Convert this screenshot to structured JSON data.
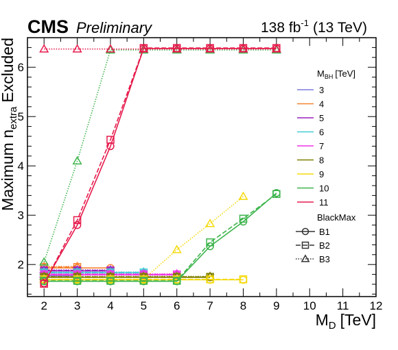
{
  "header": {
    "experiment": "CMS",
    "status": "Preliminary",
    "lumi": "138 fb",
    "lumi_exp": "-1",
    "energy": "(13 TeV)"
  },
  "legend": {
    "mass_title": "M",
    "mass_title_sub": "BH",
    "mass_title_unit": "[TeV]",
    "model_title": "BlackMax",
    "models": [
      "B1",
      "B2",
      "B3"
    ]
  },
  "chart_data": {
    "type": "line",
    "xlabel": "M",
    "xlabel_sub": "D",
    "xlabel_unit": "[TeV]",
    "ylabel": "Maximum n",
    "ylabel_sub": "extra",
    "ylabel_suffix": "Excluded",
    "xlim": [
      1.5,
      12
    ],
    "ylim": [
      1.35,
      6.6
    ],
    "xticks": [
      2,
      3,
      4,
      5,
      6,
      7,
      8,
      9,
      10,
      11,
      12
    ],
    "yticks": [
      2,
      3,
      4,
      5,
      6
    ],
    "legend_position": "right",
    "series": [
      {
        "name": "3",
        "color": "#7c7ce0",
        "points": {
          "B1": [
            [
              2,
              1.77
            ],
            [
              3,
              1.77
            ]
          ],
          "B2": [
            [
              2,
              1.79
            ],
            [
              3,
              1.79
            ]
          ],
          "B3": [
            [
              2,
              1.8
            ],
            [
              3,
              1.8
            ]
          ]
        }
      },
      {
        "name": "4",
        "color": "#f58231",
        "points": {
          "B1": [
            [
              2,
              1.93
            ],
            [
              3,
              1.93
            ],
            [
              4,
              1.93
            ]
          ],
          "B2": [
            [
              2,
              1.95
            ],
            [
              3,
              1.95
            ]
          ],
          "B3": [
            [
              2,
              1.96
            ],
            [
              3,
              1.96
            ]
          ]
        }
      },
      {
        "name": "5",
        "color": "#9a1fbf",
        "points": {
          "B1": [
            [
              2,
              1.87
            ],
            [
              3,
              1.87
            ],
            [
              4,
              1.87
            ]
          ],
          "B2": [
            [
              2,
              1.88
            ],
            [
              3,
              1.88
            ],
            [
              4,
              1.88
            ]
          ],
          "B3": [
            [
              2,
              1.89
            ],
            [
              3,
              1.89
            ],
            [
              4,
              1.89
            ]
          ]
        }
      },
      {
        "name": "6",
        "color": "#46c9d4",
        "points": {
          "B1": [
            [
              2,
              1.83
            ],
            [
              3,
              1.83
            ],
            [
              4,
              1.83
            ],
            [
              5,
              1.83
            ]
          ],
          "B2": [
            [
              2,
              1.84
            ],
            [
              3,
              1.84
            ],
            [
              4,
              1.84
            ],
            [
              5,
              1.84
            ]
          ],
          "B3": [
            [
              2,
              1.85
            ],
            [
              3,
              1.85
            ],
            [
              4,
              1.85
            ],
            [
              5,
              1.85
            ]
          ]
        }
      },
      {
        "name": "7",
        "color": "#f032e6",
        "points": {
          "B1": [
            [
              2,
              1.79
            ],
            [
              3,
              1.79
            ],
            [
              4,
              1.79
            ],
            [
              5,
              1.79
            ],
            [
              6,
              1.79
            ]
          ],
          "B2": [
            [
              2,
              1.8
            ],
            [
              3,
              1.8
            ],
            [
              4,
              1.8
            ],
            [
              5,
              1.8
            ],
            [
              6,
              1.8
            ]
          ],
          "B3": [
            [
              2,
              1.81
            ],
            [
              3,
              1.81
            ],
            [
              4,
              1.81
            ],
            [
              5,
              1.81
            ],
            [
              6,
              1.81
            ]
          ]
        }
      },
      {
        "name": "8",
        "color": "#7f7f00",
        "points": {
          "B1": [
            [
              2,
              1.74
            ],
            [
              3,
              1.74
            ],
            [
              4,
              1.74
            ],
            [
              5,
              1.74
            ],
            [
              6,
              1.74
            ],
            [
              7,
              1.74
            ]
          ],
          "B2": [
            [
              2,
              1.75
            ],
            [
              3,
              1.75
            ],
            [
              4,
              1.75
            ],
            [
              5,
              1.75
            ],
            [
              6,
              1.75
            ],
            [
              7,
              1.75
            ]
          ],
          "B3": [
            [
              2,
              1.76
            ],
            [
              3,
              1.76
            ],
            [
              4,
              1.76
            ],
            [
              5,
              1.76
            ],
            [
              6,
              1.76
            ],
            [
              7,
              1.76
            ]
          ]
        }
      },
      {
        "name": "9",
        "color": "#f5d90a",
        "points": {
          "B1": [
            [
              2,
              1.69
            ],
            [
              3,
              1.69
            ],
            [
              4,
              1.69
            ],
            [
              5,
              1.69
            ],
            [
              6,
              1.69
            ],
            [
              7,
              1.69
            ],
            [
              8,
              1.69
            ]
          ],
          "B2": [
            [
              2,
              1.7
            ],
            [
              3,
              1.7
            ],
            [
              4,
              1.7
            ],
            [
              5,
              1.7
            ],
            [
              6,
              1.7
            ],
            [
              7,
              1.7
            ],
            [
              8,
              1.7
            ]
          ],
          "B3": [
            [
              2,
              1.7
            ],
            [
              3,
              1.7
            ],
            [
              4,
              1.7
            ],
            [
              5,
              1.7
            ],
            [
              6,
              2.3
            ],
            [
              7,
              2.83
            ],
            [
              8,
              3.38
            ]
          ]
        }
      },
      {
        "name": "10",
        "color": "#3cb44b",
        "points": {
          "B1": [
            [
              2,
              1.66
            ],
            [
              3,
              1.66
            ],
            [
              4,
              1.66
            ],
            [
              5,
              1.66
            ],
            [
              6,
              1.66
            ],
            [
              7,
              2.37
            ],
            [
              8,
              2.87
            ],
            [
              9,
              3.45
            ]
          ],
          "B2": [
            [
              2,
              1.67
            ],
            [
              3,
              1.67
            ],
            [
              4,
              1.67
            ],
            [
              5,
              1.67
            ],
            [
              6,
              1.67
            ],
            [
              7,
              2.45
            ],
            [
              8,
              2.93
            ],
            [
              9,
              3.43
            ]
          ],
          "B3": [
            [
              2,
              2.05
            ],
            [
              3,
              4.1
            ],
            [
              4,
              6.35
            ],
            [
              5,
              6.35
            ],
            [
              6,
              6.35
            ],
            [
              7,
              6.35
            ],
            [
              8,
              6.35
            ],
            [
              9,
              6.35
            ]
          ]
        }
      },
      {
        "name": "11",
        "color": "#e6194b",
        "points": {
          "B1": [
            [
              2,
              1.62
            ],
            [
              3,
              2.8
            ],
            [
              4,
              4.4
            ],
            [
              5,
              6.38
            ],
            [
              6,
              6.38
            ],
            [
              7,
              6.38
            ],
            [
              8,
              6.38
            ],
            [
              9,
              6.38
            ]
          ],
          "B2": [
            [
              2,
              1.61
            ],
            [
              3,
              2.9
            ],
            [
              4,
              4.53
            ],
            [
              5,
              6.39
            ],
            [
              6,
              6.39
            ],
            [
              7,
              6.39
            ],
            [
              8,
              6.39
            ],
            [
              9,
              6.39
            ]
          ],
          "B3": [
            [
              2,
              6.37
            ],
            [
              3,
              6.37
            ],
            [
              4,
              6.37
            ],
            [
              5,
              6.37
            ],
            [
              6,
              6.37
            ],
            [
              7,
              6.37
            ],
            [
              8,
              6.37
            ],
            [
              9,
              6.37
            ]
          ]
        }
      }
    ]
  }
}
